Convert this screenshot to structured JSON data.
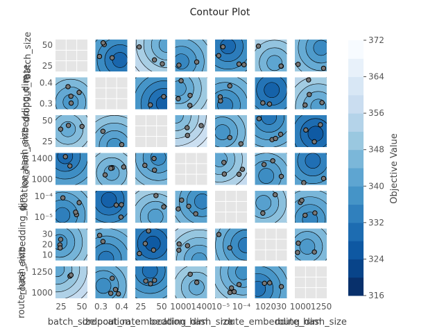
{
  "chart_data": {
    "type": "contour",
    "title": "Contour Plot",
    "params": [
      "batch_size",
      "dropout_rate",
      "location_embedding_dim",
      "location_hash_size",
      "lr",
      "route_embedding_dim",
      "route_hash_size"
    ],
    "row_ticks": [
      [
        "25",
        "50"
      ],
      [
        "0.3",
        "0.4"
      ],
      [
        "25",
        "50"
      ],
      [
        "1000",
        "1400"
      ],
      [
        "10⁻⁵",
        "10⁻⁴"
      ],
      [
        "10",
        "20",
        "30"
      ],
      [
        "1000",
        "1250"
      ]
    ],
    "col_ticks": [
      [
        "25",
        "50"
      ],
      [
        "0.3",
        "0.4"
      ],
      [
        "25",
        "50"
      ],
      [
        "1000",
        "1400"
      ],
      [
        "10⁻⁵",
        "10⁻⁴"
      ],
      [
        "10",
        "20",
        "30"
      ],
      [
        "1000",
        "1250"
      ]
    ],
    "colorbar": {
      "label": "Objective Value",
      "min": 316,
      "max": 372,
      "ticks": [
        "316",
        "324",
        "332",
        "340",
        "348",
        "356",
        "364",
        "372"
      ],
      "colormap": "Blues"
    },
    "diagonal_color": "#e5e5e5"
  }
}
